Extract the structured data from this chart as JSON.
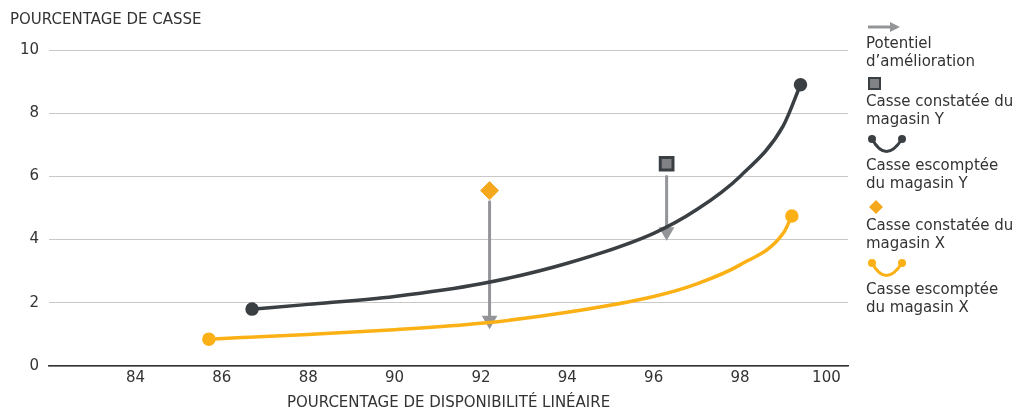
{
  "chart_data": {
    "type": "line",
    "xlabel": "POURCENTAGE DE DISPONIBILITÉ LINÉAIRE",
    "ylabel": "POURCENTAGE DE CASSE",
    "xlim": [
      82,
      100.5
    ],
    "xticks": [
      84,
      86,
      88,
      90,
      92,
      94,
      96,
      98,
      100
    ],
    "ylim": [
      0,
      10
    ],
    "yticks": [
      0,
      2,
      4,
      6,
      8,
      10
    ],
    "grid": "y",
    "legend": "right",
    "series": [
      {
        "name": "Potentiel d’amélioration",
        "marker": "triangle",
        "color": "#939598",
        "x": [
          92.2,
          92.2,
          null,
          96.3,
          96.3
        ],
        "values": [
          5.2,
          1.45,
          null,
          6.0,
          4.25
        ]
      },
      {
        "name": "Casse constatée du magasin Y",
        "type": "scatter",
        "marker": "square",
        "color": "#808285",
        "x": [
          96.3
        ],
        "values": [
          6.4
        ]
      },
      {
        "name": "Casse escomptée du magasin Y",
        "color": "#3a3f44",
        "x": [
          86.7,
          88,
          90,
          92,
          94,
          96,
          97,
          98,
          99,
          99.4
        ],
        "values": [
          1.8,
          1.95,
          2.2,
          2.6,
          3.25,
          4.2,
          4.95,
          6.0,
          7.6,
          8.9
        ]
      },
      {
        "name": "Casse constatée du magasin X",
        "type": "scatter",
        "marker": "diamond",
        "color": "#f6a81c",
        "x": [
          92.2
        ],
        "values": [
          5.55
        ]
      },
      {
        "name": "Casse escomptée du magasin X",
        "color": "#fbb116",
        "x": [
          85.7,
          88,
          90,
          92,
          94,
          96,
          97,
          98,
          99,
          99.2
        ],
        "values": [
          0.85,
          1.0,
          1.15,
          1.35,
          1.7,
          2.2,
          2.6,
          3.2,
          4.2,
          4.75
        ]
      }
    ]
  }
}
